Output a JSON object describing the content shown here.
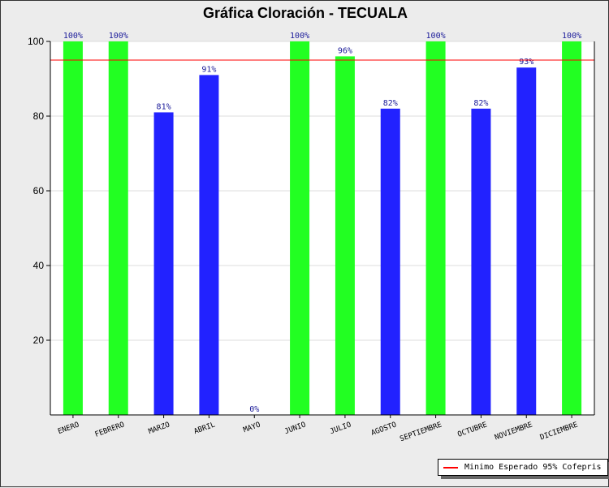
{
  "chart_data": {
    "type": "bar",
    "title": "Gráfica Cloración - TECUALA",
    "categories": [
      "ENERO",
      "FEBRERO",
      "MARZO",
      "ABRIL",
      "MAYO",
      "JUNIO",
      "JULIO",
      "AGOSTO",
      "SEPTIEMBRE",
      "OCTUBRE",
      "NOVIEMBRE",
      "DICIEMBRE"
    ],
    "values": [
      100,
      100,
      81,
      91,
      0,
      100,
      96,
      82,
      100,
      82,
      93,
      100
    ],
    "data_labels": [
      "100%",
      "100%",
      "81%",
      "91%",
      "0%",
      "100%",
      "96%",
      "82%",
      "100%",
      "82%",
      "93%",
      "100%"
    ],
    "ylim": [
      0,
      100
    ],
    "yticks": [
      20,
      40,
      60,
      80,
      100
    ],
    "threshold": {
      "value": 95,
      "label": "Minimo Esperado 95% Cofepris",
      "color": "#ff0000"
    },
    "colors": {
      "meets": "#22ff22",
      "below": "#2222ff"
    },
    "legend_position": "bottom-right",
    "grid": true
  }
}
